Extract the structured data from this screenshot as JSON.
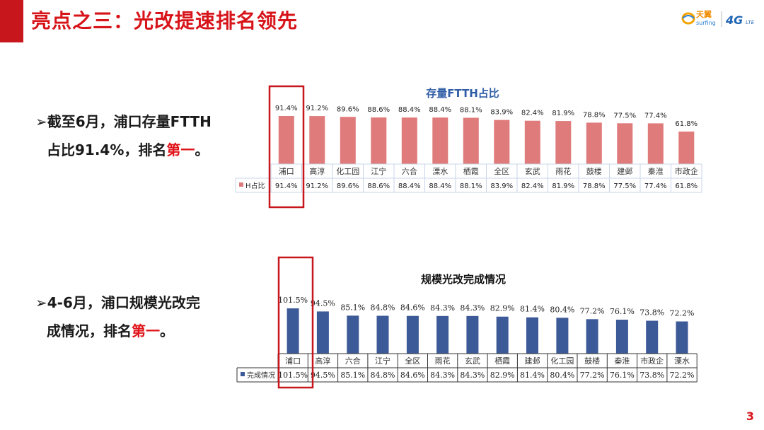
{
  "slide": {
    "title": "亮点之三：光改提速排名领先",
    "page_number": "3",
    "logo_text": "天翼",
    "logo_sub": "surfing",
    "logo_4g": "4G",
    "logo_lte": "LTE",
    "accent_color": "#c8161d"
  },
  "bullets": [
    {
      "arrow": "➢",
      "line1": "截至6月，浦口存量FTTH",
      "line2_pre": "占比91.4%，排名",
      "highlight": "第一",
      "line2_post": "。"
    },
    {
      "arrow": "➢",
      "line1": "4-6月，浦口规模光改完",
      "line2_pre": "成情况，排名",
      "highlight": "第一",
      "line2_post": "。"
    }
  ],
  "chart_data": [
    {
      "type": "bar",
      "title": "存量FTTH占比",
      "categories": [
        "浦口",
        "高淳",
        "化工园",
        "江宁",
        "六合",
        "溧水",
        "栖霞",
        "全区",
        "玄武",
        "雨花",
        "鼓楼",
        "建邺",
        "秦淮",
        "市政企"
      ],
      "series": [
        {
          "name": "H占比",
          "values": [
            91.4,
            91.2,
            89.6,
            88.6,
            88.4,
            88.4,
            88.1,
            83.9,
            82.4,
            81.9,
            78.8,
            77.5,
            77.4,
            61.8
          ]
        }
      ],
      "labels": [
        "91.4%",
        "91.2%",
        "89.6%",
        "88.6%",
        "88.4%",
        "88.4%",
        "88.1%",
        "83.9%",
        "82.4%",
        "81.9%",
        "78.8%",
        "77.5%",
        "77.4%",
        "61.8%"
      ],
      "bar_color": "#e07b7b",
      "highlight_index": 0
    },
    {
      "type": "bar",
      "title": "规模光改完成情况",
      "categories": [
        "浦口",
        "高淳",
        "六合",
        "江宁",
        "全区",
        "雨花",
        "玄武",
        "栖霞",
        "建邺",
        "化工园",
        "鼓楼",
        "秦淮",
        "市政企",
        "溧水"
      ],
      "series": [
        {
          "name": "完成情况",
          "values": [
            101.5,
            94.5,
            85.1,
            84.8,
            84.6,
            84.3,
            84.3,
            82.9,
            81.4,
            80.4,
            77.2,
            76.1,
            73.8,
            72.2
          ]
        }
      ],
      "labels": [
        "101.5%",
        "94.5%",
        "85.1%",
        "84.8%",
        "84.6%",
        "84.3%",
        "84.3%",
        "82.9%",
        "81.4%",
        "80.4%",
        "77.2%",
        "76.1%",
        "73.8%",
        "72.2%"
      ],
      "bar_color": "#3d5a98",
      "highlight_index": 0
    }
  ]
}
